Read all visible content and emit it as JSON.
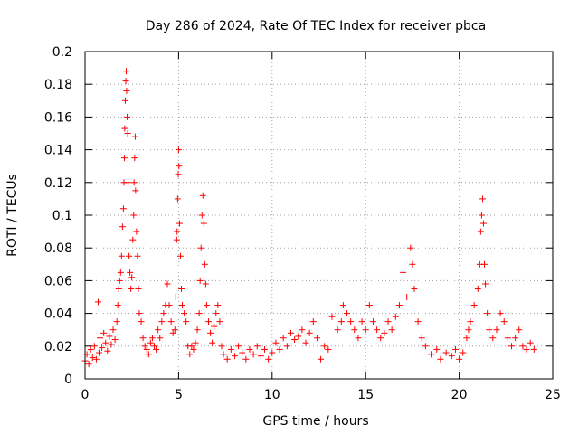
{
  "chart_data": {
    "type": "scatter",
    "title": "Day 286 of 2024, Rate Of TEC Index for receiver pbca",
    "xlabel": "GPS time / hours",
    "ylabel": "ROTI / TECUs",
    "xlim": [
      0,
      25
    ],
    "ylim": [
      0,
      0.2
    ],
    "xticks": [
      0,
      5,
      10,
      15,
      20,
      25
    ],
    "xtick_labels": [
      "0",
      "5",
      "10",
      "15",
      "20",
      "25"
    ],
    "yticks": [
      0,
      0.02,
      0.04,
      0.06,
      0.08,
      0.1,
      0.12,
      0.14,
      0.16,
      0.18,
      0.2
    ],
    "ytick_labels": [
      "0",
      "0.02",
      "0.04",
      "0.06",
      "0.08",
      "0.1",
      "0.12",
      "0.14",
      "0.16",
      "0.18",
      "0.2"
    ],
    "grid": true,
    "marker": "+",
    "color": "#ff0000",
    "series": [
      {
        "name": "ROTI",
        "points": [
          [
            0.0,
            0.011
          ],
          [
            0.1,
            0.015
          ],
          [
            0.2,
            0.009
          ],
          [
            0.3,
            0.018
          ],
          [
            0.4,
            0.013
          ],
          [
            0.5,
            0.02
          ],
          [
            0.6,
            0.012
          ],
          [
            0.7,
            0.047
          ],
          [
            0.75,
            0.016
          ],
          [
            0.8,
            0.025
          ],
          [
            0.9,
            0.019
          ],
          [
            1.0,
            0.028
          ],
          [
            1.1,
            0.022
          ],
          [
            1.2,
            0.017
          ],
          [
            1.3,
            0.026
          ],
          [
            1.4,
            0.021
          ],
          [
            1.5,
            0.03
          ],
          [
            1.6,
            0.024
          ],
          [
            1.7,
            0.035
          ],
          [
            1.75,
            0.045
          ],
          [
            1.8,
            0.055
          ],
          [
            1.85,
            0.06
          ],
          [
            1.9,
            0.065
          ],
          [
            1.95,
            0.075
          ],
          [
            2.0,
            0.093
          ],
          [
            2.05,
            0.104
          ],
          [
            2.08,
            0.12
          ],
          [
            2.1,
            0.135
          ],
          [
            2.12,
            0.153
          ],
          [
            2.15,
            0.17
          ],
          [
            2.18,
            0.182
          ],
          [
            2.2,
            0.188
          ],
          [
            2.22,
            0.176
          ],
          [
            2.25,
            0.16
          ],
          [
            2.28,
            0.15
          ],
          [
            2.3,
            0.12
          ],
          [
            2.35,
            0.075
          ],
          [
            2.4,
            0.065
          ],
          [
            2.45,
            0.055
          ],
          [
            2.5,
            0.062
          ],
          [
            2.55,
            0.085
          ],
          [
            2.6,
            0.1
          ],
          [
            2.62,
            0.12
          ],
          [
            2.65,
            0.135
          ],
          [
            2.68,
            0.148
          ],
          [
            2.7,
            0.115
          ],
          [
            2.75,
            0.09
          ],
          [
            2.8,
            0.075
          ],
          [
            2.85,
            0.055
          ],
          [
            2.9,
            0.04
          ],
          [
            3.0,
            0.035
          ],
          [
            3.1,
            0.025
          ],
          [
            3.2,
            0.02
          ],
          [
            3.3,
            0.018
          ],
          [
            3.4,
            0.015
          ],
          [
            3.5,
            0.022
          ],
          [
            3.6,
            0.025
          ],
          [
            3.7,
            0.02
          ],
          [
            3.8,
            0.018
          ],
          [
            3.9,
            0.03
          ],
          [
            4.0,
            0.025
          ],
          [
            4.1,
            0.035
          ],
          [
            4.2,
            0.04
          ],
          [
            4.3,
            0.045
          ],
          [
            4.4,
            0.058
          ],
          [
            4.5,
            0.045
          ],
          [
            4.6,
            0.035
          ],
          [
            4.7,
            0.028
          ],
          [
            4.8,
            0.03
          ],
          [
            4.85,
            0.05
          ],
          [
            4.9,
            0.085
          ],
          [
            4.92,
            0.09
          ],
          [
            4.95,
            0.11
          ],
          [
            4.98,
            0.125
          ],
          [
            5.0,
            0.14
          ],
          [
            5.02,
            0.13
          ],
          [
            5.05,
            0.095
          ],
          [
            5.1,
            0.075
          ],
          [
            5.15,
            0.055
          ],
          [
            5.2,
            0.045
          ],
          [
            5.3,
            0.04
          ],
          [
            5.4,
            0.035
          ],
          [
            5.5,
            0.02
          ],
          [
            5.6,
            0.015
          ],
          [
            5.7,
            0.02
          ],
          [
            5.8,
            0.018
          ],
          [
            5.9,
            0.022
          ],
          [
            6.0,
            0.03
          ],
          [
            6.1,
            0.04
          ],
          [
            6.15,
            0.06
          ],
          [
            6.2,
            0.08
          ],
          [
            6.25,
            0.1
          ],
          [
            6.3,
            0.112
          ],
          [
            6.35,
            0.095
          ],
          [
            6.4,
            0.07
          ],
          [
            6.45,
            0.058
          ],
          [
            6.5,
            0.045
          ],
          [
            6.6,
            0.035
          ],
          [
            6.7,
            0.028
          ],
          [
            6.8,
            0.022
          ],
          [
            6.9,
            0.032
          ],
          [
            7.0,
            0.04
          ],
          [
            7.1,
            0.045
          ],
          [
            7.2,
            0.035
          ],
          [
            7.3,
            0.02
          ],
          [
            7.4,
            0.015
          ],
          [
            7.6,
            0.012
          ],
          [
            7.8,
            0.018
          ],
          [
            8.0,
            0.014
          ],
          [
            8.2,
            0.02
          ],
          [
            8.4,
            0.016
          ],
          [
            8.6,
            0.012
          ],
          [
            8.8,
            0.018
          ],
          [
            9.0,
            0.015
          ],
          [
            9.2,
            0.02
          ],
          [
            9.4,
            0.014
          ],
          [
            9.6,
            0.018
          ],
          [
            9.8,
            0.012
          ],
          [
            10.0,
            0.016
          ],
          [
            10.2,
            0.022
          ],
          [
            10.4,
            0.018
          ],
          [
            10.6,
            0.025
          ],
          [
            10.8,
            0.02
          ],
          [
            11.0,
            0.028
          ],
          [
            11.2,
            0.024
          ],
          [
            11.4,
            0.026
          ],
          [
            11.6,
            0.03
          ],
          [
            11.8,
            0.022
          ],
          [
            12.0,
            0.028
          ],
          [
            12.2,
            0.035
          ],
          [
            12.4,
            0.025
          ],
          [
            12.6,
            0.012
          ],
          [
            12.8,
            0.02
          ],
          [
            13.0,
            0.018
          ],
          [
            13.2,
            0.038
          ],
          [
            13.5,
            0.03
          ],
          [
            13.7,
            0.035
          ],
          [
            13.8,
            0.045
          ],
          [
            14.0,
            0.04
          ],
          [
            14.2,
            0.035
          ],
          [
            14.4,
            0.03
          ],
          [
            14.6,
            0.025
          ],
          [
            14.8,
            0.035
          ],
          [
            15.0,
            0.03
          ],
          [
            15.2,
            0.045
          ],
          [
            15.4,
            0.035
          ],
          [
            15.6,
            0.03
          ],
          [
            15.8,
            0.025
          ],
          [
            16.0,
            0.028
          ],
          [
            16.2,
            0.035
          ],
          [
            16.4,
            0.03
          ],
          [
            16.6,
            0.038
          ],
          [
            16.8,
            0.045
          ],
          [
            17.0,
            0.065
          ],
          [
            17.2,
            0.05
          ],
          [
            17.4,
            0.08
          ],
          [
            17.5,
            0.07
          ],
          [
            17.6,
            0.055
          ],
          [
            17.8,
            0.035
          ],
          [
            18.0,
            0.025
          ],
          [
            18.2,
            0.02
          ],
          [
            18.5,
            0.015
          ],
          [
            18.8,
            0.018
          ],
          [
            19.0,
            0.012
          ],
          [
            19.3,
            0.016
          ],
          [
            19.6,
            0.014
          ],
          [
            19.8,
            0.018
          ],
          [
            20.0,
            0.012
          ],
          [
            20.2,
            0.016
          ],
          [
            20.4,
            0.025
          ],
          [
            20.5,
            0.03
          ],
          [
            20.6,
            0.035
          ],
          [
            20.8,
            0.045
          ],
          [
            21.0,
            0.055
          ],
          [
            21.1,
            0.07
          ],
          [
            21.15,
            0.09
          ],
          [
            21.2,
            0.1
          ],
          [
            21.25,
            0.11
          ],
          [
            21.3,
            0.095
          ],
          [
            21.35,
            0.07
          ],
          [
            21.4,
            0.058
          ],
          [
            21.5,
            0.04
          ],
          [
            21.6,
            0.03
          ],
          [
            21.8,
            0.025
          ],
          [
            22.0,
            0.03
          ],
          [
            22.2,
            0.04
          ],
          [
            22.4,
            0.035
          ],
          [
            22.6,
            0.025
          ],
          [
            22.8,
            0.02
          ],
          [
            23.0,
            0.025
          ],
          [
            23.2,
            0.03
          ],
          [
            23.4,
            0.02
          ],
          [
            23.6,
            0.018
          ],
          [
            23.8,
            0.022
          ],
          [
            24.0,
            0.018
          ]
        ]
      }
    ]
  }
}
